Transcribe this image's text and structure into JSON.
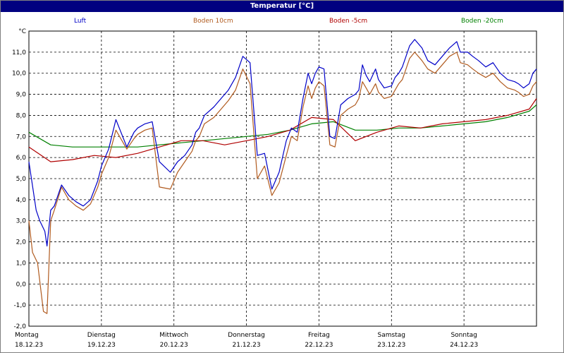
{
  "window": {
    "title": "Temperatur [°C]"
  },
  "legend": [
    {
      "label": "Luft",
      "color": "#0000c8"
    },
    {
      "label": "Boden 10cm",
      "color": "#b05a1e"
    },
    {
      "label": "Boden -5cm",
      "color": "#b00000"
    },
    {
      "label": "Boden -20cm",
      "color": "#008000"
    }
  ],
  "chart_data": {
    "type": "line",
    "ylabel": "°C",
    "ylim": [
      -2.0,
      12.0
    ],
    "yticks": [
      "-2,0",
      "-1,0",
      "0,0",
      "1,0",
      "2,0",
      "3,0",
      "4,0",
      "5,0",
      "6,0",
      "7,0",
      "8,0",
      "9,0",
      "10,0",
      "11,0"
    ],
    "xlim": [
      0,
      7
    ],
    "days": [
      {
        "name": "Montag",
        "date": "18.12.23"
      },
      {
        "name": "Dienstag",
        "date": "19.12.23"
      },
      {
        "name": "Mittwoch",
        "date": "20.12.23"
      },
      {
        "name": "Donnerstag",
        "date": "21.12.23"
      },
      {
        "name": "Freitag",
        "date": "22.12.23"
      },
      {
        "name": "Samstag",
        "date": "23.12.23"
      },
      {
        "name": "Sonntag",
        "date": "24.12.23"
      }
    ],
    "grid": true,
    "series": [
      {
        "name": "Luft",
        "color": "#0000c8",
        "x": [
          0,
          0.1,
          0.15,
          0.22,
          0.25,
          0.3,
          0.35,
          0.45,
          0.55,
          0.65,
          0.75,
          0.85,
          0.95,
          1.0,
          1.1,
          1.2,
          1.35,
          1.45,
          1.5,
          1.6,
          1.7,
          1.8,
          1.95,
          2.05,
          2.15,
          2.25,
          2.3,
          2.35,
          2.42,
          2.55,
          2.65,
          2.75,
          2.85,
          2.95,
          3.05,
          3.15,
          3.25,
          3.35,
          3.45,
          3.55,
          3.62,
          3.7,
          3.78,
          3.85,
          3.9,
          3.95,
          4.0,
          4.07,
          4.15,
          4.22,
          4.3,
          4.4,
          4.5,
          4.55,
          4.6,
          4.65,
          4.7,
          4.78,
          4.82,
          4.9,
          5.0,
          5.05,
          5.1,
          5.15,
          5.2,
          5.25,
          5.32,
          5.42,
          5.5,
          5.6,
          5.7,
          5.8,
          5.9,
          5.95,
          6.05,
          6.12,
          6.2,
          6.3,
          6.4,
          6.5,
          6.6,
          6.7,
          6.75,
          6.82,
          6.9,
          6.95,
          7.0
        ],
        "y": [
          5.8,
          3.5,
          3.0,
          2.5,
          1.8,
          3.5,
          3.7,
          4.7,
          4.2,
          3.9,
          3.7,
          4.0,
          4.9,
          5.6,
          6.4,
          7.8,
          6.5,
          7.2,
          7.4,
          7.6,
          7.7,
          5.8,
          5.3,
          5.8,
          6.1,
          6.6,
          7.2,
          7.4,
          8.0,
          8.4,
          8.8,
          9.2,
          9.8,
          10.8,
          10.5,
          6.1,
          6.2,
          4.5,
          5.3,
          6.8,
          7.4,
          7.2,
          8.8,
          10.0,
          9.5,
          10.0,
          10.3,
          10.2,
          7.0,
          6.9,
          8.5,
          8.8,
          9.0,
          9.2,
          10.4,
          9.9,
          9.6,
          10.2,
          9.7,
          9.3,
          9.4,
          9.8,
          10.0,
          10.3,
          10.8,
          11.3,
          11.6,
          11.2,
          10.6,
          10.4,
          10.8,
          11.2,
          11.5,
          11.0,
          11.0,
          10.8,
          10.6,
          10.3,
          10.5,
          10.0,
          9.7,
          9.6,
          9.5,
          9.3,
          9.5,
          10.0,
          10.2
        ],
        "x2": [],
        "y2": []
      },
      {
        "name": "Boden 10cm",
        "color": "#b05a1e",
        "x": [
          0,
          0.05,
          0.12,
          0.2,
          0.25,
          0.3,
          0.35,
          0.45,
          0.55,
          0.65,
          0.75,
          0.85,
          0.95,
          1.0,
          1.1,
          1.2,
          1.35,
          1.45,
          1.5,
          1.6,
          1.7,
          1.8,
          1.95,
          2.05,
          2.15,
          2.25,
          2.3,
          2.35,
          2.42,
          2.55,
          2.65,
          2.75,
          2.85,
          2.95,
          3.05,
          3.15,
          3.25,
          3.35,
          3.45,
          3.55,
          3.62,
          3.7,
          3.78,
          3.85,
          3.9,
          3.95,
          4.0,
          4.07,
          4.15,
          4.22,
          4.3,
          4.4,
          4.5,
          4.55,
          4.6,
          4.65,
          4.7,
          4.78,
          4.82,
          4.9,
          5.0,
          5.05,
          5.1,
          5.15,
          5.2,
          5.25,
          5.32,
          5.42,
          5.5,
          5.6,
          5.7,
          5.8,
          5.9,
          5.95,
          6.05,
          6.12,
          6.2,
          6.3,
          6.4,
          6.5,
          6.6,
          6.7,
          6.75,
          6.82,
          6.9,
          6.95,
          7.0
        ],
        "y": [
          3.0,
          1.5,
          1.0,
          -1.3,
          -1.4,
          3.0,
          3.5,
          4.6,
          4.0,
          3.7,
          3.5,
          3.8,
          4.6,
          5.2,
          6.0,
          7.3,
          6.4,
          6.9,
          7.1,
          7.3,
          7.4,
          4.6,
          4.5,
          5.3,
          5.8,
          6.3,
          6.8,
          7.0,
          7.6,
          7.9,
          8.3,
          8.7,
          9.2,
          10.2,
          9.5,
          5.0,
          5.6,
          4.2,
          4.8,
          6.1,
          7.0,
          6.8,
          8.4,
          9.4,
          8.8,
          9.3,
          9.6,
          9.4,
          6.6,
          6.5,
          8.0,
          8.3,
          8.5,
          8.8,
          9.6,
          9.3,
          9.0,
          9.5,
          9.1,
          8.8,
          8.9,
          9.2,
          9.5,
          9.7,
          10.2,
          10.7,
          11.0,
          10.6,
          10.2,
          10.0,
          10.4,
          10.8,
          11.0,
          10.5,
          10.4,
          10.2,
          10.0,
          9.8,
          10.0,
          9.6,
          9.3,
          9.2,
          9.1,
          8.9,
          9.0,
          9.4,
          9.6
        ]
      },
      {
        "name": "Boden -5cm",
        "color": "#b00000",
        "x": [
          0,
          0.3,
          0.6,
          0.9,
          1.2,
          1.5,
          1.8,
          2.1,
          2.4,
          2.7,
          3.0,
          3.3,
          3.6,
          3.9,
          4.2,
          4.5,
          4.8,
          5.1,
          5.4,
          5.7,
          6.0,
          6.3,
          6.6,
          6.9,
          7.0
        ],
        "y": [
          6.5,
          5.8,
          5.9,
          6.1,
          6.0,
          6.2,
          6.5,
          6.8,
          6.8,
          6.6,
          6.8,
          7.0,
          7.3,
          7.9,
          7.8,
          6.8,
          7.2,
          7.5,
          7.4,
          7.6,
          7.7,
          7.8,
          8.0,
          8.3,
          8.8
        ]
      },
      {
        "name": "Boden -20cm",
        "color": "#008000",
        "x": [
          0,
          0.3,
          0.6,
          0.9,
          1.2,
          1.5,
          1.8,
          2.1,
          2.4,
          2.7,
          3.0,
          3.3,
          3.6,
          3.9,
          4.2,
          4.5,
          4.8,
          5.1,
          5.4,
          5.7,
          6.0,
          6.3,
          6.6,
          6.9,
          7.0
        ],
        "y": [
          7.2,
          6.6,
          6.5,
          6.5,
          6.5,
          6.5,
          6.6,
          6.7,
          6.8,
          6.9,
          7.0,
          7.1,
          7.3,
          7.6,
          7.7,
          7.3,
          7.3,
          7.4,
          7.4,
          7.5,
          7.6,
          7.7,
          7.9,
          8.2,
          8.5
        ]
      }
    ]
  }
}
